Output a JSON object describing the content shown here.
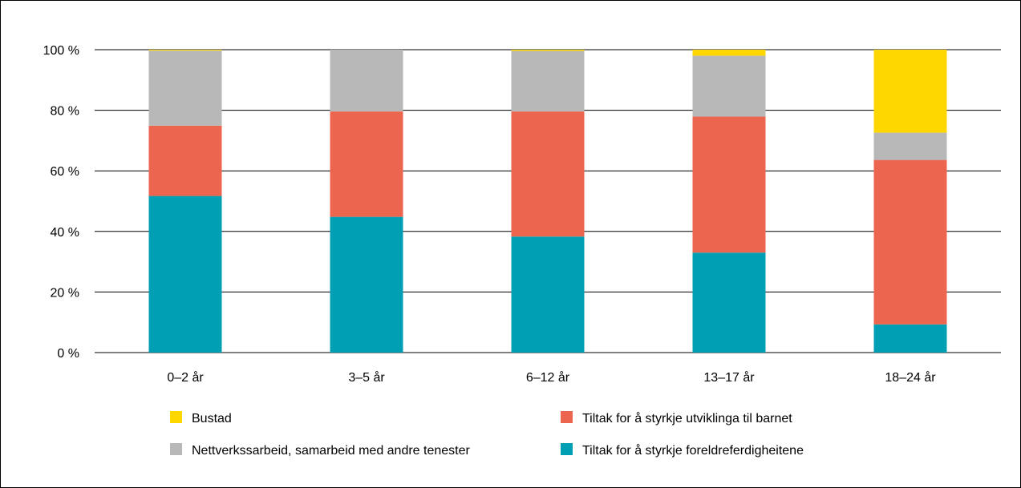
{
  "chart_data": {
    "type": "bar",
    "stacked": true,
    "categories": [
      "0–2 år",
      "3–5 år",
      "6–12 år",
      "13–17 år",
      "18–24 år"
    ],
    "series": [
      {
        "name": "Tiltak for å styrkje foreldreferdigheitene",
        "color": "#009fb3",
        "values": [
          51.7,
          44.8,
          38.3,
          33.0,
          9.3
        ]
      },
      {
        "name": "Tiltak for å styrkje utviklinga til barnet",
        "color": "#ec654e",
        "values": [
          23.2,
          34.8,
          41.3,
          44.9,
          54.3
        ]
      },
      {
        "name": "Nettverkssarbeid, samarbeid med andre tenester",
        "color": "#b8b8b9",
        "values": [
          24.8,
          20.4,
          20.0,
          20.1,
          9.0
        ]
      },
      {
        "name": "Bustad",
        "color": "#ffd700",
        "values": [
          0.3,
          0.0,
          0.4,
          2.0,
          27.4
        ]
      }
    ],
    "yticks": [
      "0 %",
      "20 %",
      "40 %",
      "60 %",
      "80 %",
      "100 %"
    ],
    "ylim": [
      0,
      100
    ],
    "grid": true,
    "legend_position": "bottom",
    "legend_order": [
      3,
      1,
      2,
      0
    ]
  }
}
